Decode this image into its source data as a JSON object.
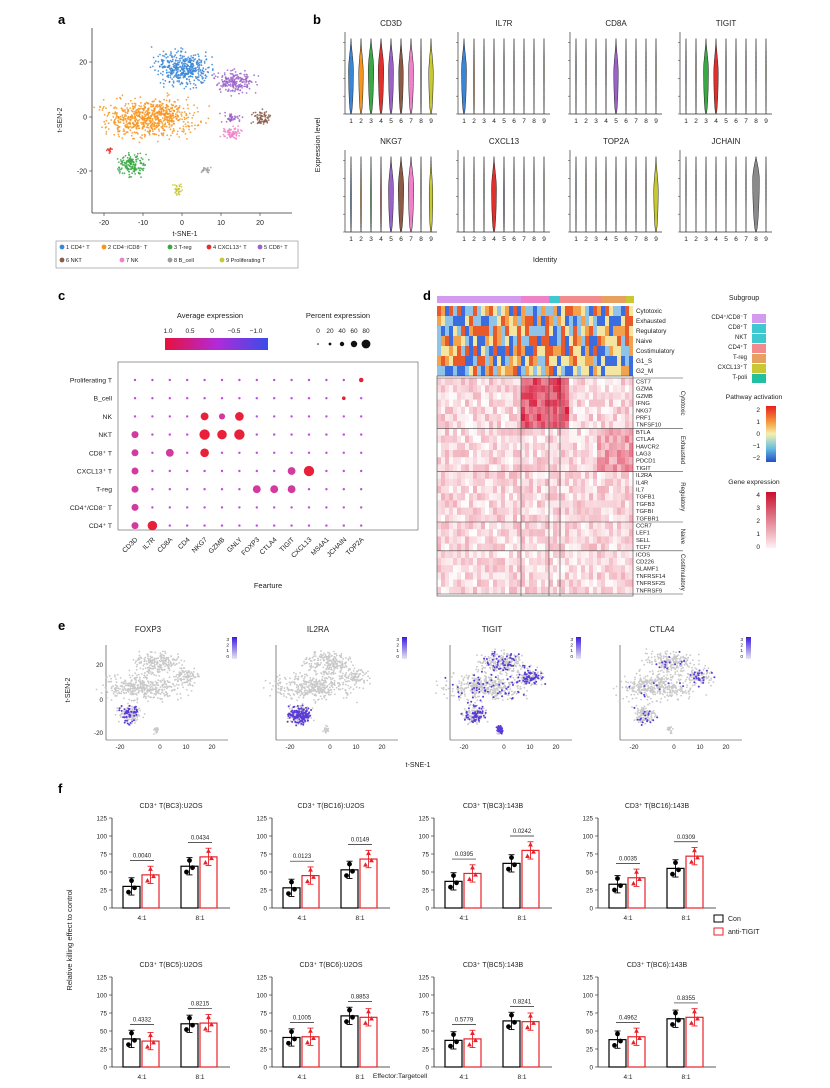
{
  "panels": {
    "a": "a",
    "b": "b",
    "c": "c",
    "d": "d",
    "e": "e",
    "f": "f"
  },
  "colors": {
    "clusters": [
      "#3a86d6",
      "#f7941d",
      "#3aa845",
      "#e0302e",
      "#9b63c9",
      "#8c5a45",
      "#ee82c8",
      "#9c9c9c",
      "#c8c832",
      "#3ec8d0"
    ],
    "con": "#000000",
    "anti": "#e8222a"
  },
  "panel_a": {
    "xlabel": "t-SNE-1",
    "ylabel": "t-SEN-2",
    "xticks": [
      "-20",
      "-10",
      "0",
      "10",
      "20"
    ],
    "yticks": [
      "20",
      "0",
      "-20"
    ],
    "legend": [
      "1 CD4⁺ T",
      "2 CD4⁻/CD8⁻ T",
      "3 T-reg",
      "4 CXCL13⁺ T",
      "5 CD8⁺ T",
      "6 NKT",
      "7 NK",
      "8 B_cell",
      "9 Proliferating T"
    ]
  },
  "panel_b": {
    "ylabel": "Expression level",
    "xlabel": "Identity",
    "genes": [
      "CD3D",
      "IL7R",
      "CD8A",
      "TIGIT",
      "NKG7",
      "CXCL13",
      "TOP2A",
      "JCHAIN"
    ],
    "identities": [
      "1",
      "2",
      "3",
      "4",
      "5",
      "6",
      "7",
      "8",
      "9"
    ]
  },
  "panel_c": {
    "legend_avg_title": "Average expression",
    "legend_avg_ticks": [
      "1.0",
      "0.5",
      "0",
      "−0.5",
      "−1.0"
    ],
    "legend_pct_title": "Percent expression",
    "legend_pct_ticks": [
      "0",
      "20",
      "40",
      "60",
      "80"
    ],
    "xlabel": "Fearture",
    "rows": [
      "Proliferating T",
      "B_cell",
      "NK",
      "NKT",
      "CD8⁺ T",
      "CXCL13⁺ T",
      "T-reg",
      "CD4⁺/CD8⁻ T",
      "CD4⁺ T"
    ],
    "cols": [
      "CD3D",
      "IL7R",
      "CD8A",
      "CD4",
      "NKG7",
      "GZMB",
      "GNLY",
      "FOXP3",
      "CTLA4",
      "TIGIT",
      "CXCL13",
      "MS4A1",
      "JCHAIN",
      "TOP2A"
    ]
  },
  "panel_d": {
    "pathways": [
      "Cytotoxic",
      "Exhausted",
      "Regulatory",
      "Naive",
      "Costimulatory",
      "G1_S",
      "G2_M"
    ],
    "genes": [
      "CST7",
      "GZMA",
      "GZMB",
      "IFNG",
      "NKG7",
      "PRF1",
      "TNFSF10",
      "BTLA",
      "CTLA4",
      "HAVCR2",
      "LAG3",
      "PDCD1",
      "TIGIT",
      "IL2RA",
      "IL4R",
      "IL7",
      "TGFB1",
      "TGFB3",
      "TGFBI",
      "TGFBR1",
      "CCR7",
      "LEF1",
      "SELL",
      "TCF7",
      "ICOS",
      "CD226",
      "SLAMF1",
      "TNFRSF14",
      "TNFRSF25",
      "TNFRSF9"
    ],
    "groups": [
      "Cytotoxic",
      "Exhausted",
      "Regulatory",
      "Naive",
      "Costimulatory"
    ],
    "legend_subgroup_title": "Subgroup",
    "legend_subgroups": [
      "CD4⁺/CD8⁻T",
      "CD8⁺T",
      "NKT",
      "CD4⁺T",
      "T-reg",
      "CXCL13⁺T",
      "T-poli"
    ],
    "legend_pathway_title": "Pathway activation",
    "legend_pathway_ticks": [
      "2",
      "1",
      "0",
      "−1",
      "−2"
    ],
    "legend_gene_title": "Gene expression",
    "legend_gene_ticks": [
      "4",
      "3",
      "2",
      "1",
      "0"
    ]
  },
  "panel_e": {
    "genes": [
      "FOXP3",
      "IL2RA",
      "TIGIT",
      "CTLA4"
    ],
    "xlabel": "t-SNE-1",
    "ylabel": "t-SEN-2",
    "xticks": [
      "-20",
      "0",
      "10",
      "20"
    ],
    "yticks": [
      "20",
      "0",
      "-20"
    ],
    "scale_ticks": [
      "3",
      "2",
      "1",
      "0"
    ]
  },
  "panel_f": {
    "ylabel": "Relative killing effect to control",
    "xlabel": "Effector:Targetcell",
    "legend": [
      "Con",
      "anti-TIGIT"
    ],
    "yticks": [
      "0",
      "25",
      "50",
      "75",
      "100",
      "125"
    ],
    "categories": [
      "4:1",
      "8:1"
    ]
  },
  "chart_data": [
    {
      "type": "bar",
      "title": "CD3⁺ T(BC3):U2OS",
      "categories": [
        "4:1",
        "8:1"
      ],
      "series": [
        {
          "name": "Con",
          "values": [
            30,
            58
          ]
        },
        {
          "name": "anti-TIGIT",
          "values": [
            46,
            71
          ]
        }
      ],
      "p_values": [
        "0.0040",
        "0.0434"
      ],
      "ylim": [
        0,
        125
      ]
    },
    {
      "type": "bar",
      "title": "CD3⁺ T(BC16):U2OS",
      "categories": [
        "4:1",
        "8:1"
      ],
      "series": [
        {
          "name": "Con",
          "values": [
            28,
            53
          ]
        },
        {
          "name": "anti-TIGIT",
          "values": [
            45,
            68
          ]
        }
      ],
      "p_values": [
        "0.0123",
        "0.0149"
      ],
      "ylim": [
        0,
        125
      ]
    },
    {
      "type": "bar",
      "title": "CD3⁺ T(BC3):143B",
      "categories": [
        "4:1",
        "8:1"
      ],
      "series": [
        {
          "name": "Con",
          "values": [
            37,
            62
          ]
        },
        {
          "name": "anti-TIGIT",
          "values": [
            48,
            80
          ]
        }
      ],
      "p_values": [
        "0.0395",
        "0.0242"
      ],
      "ylim": [
        0,
        125
      ]
    },
    {
      "type": "bar",
      "title": "CD3⁺ T(BC16):143B",
      "categories": [
        "4:1",
        "8:1"
      ],
      "series": [
        {
          "name": "Con",
          "values": [
            33,
            55
          ]
        },
        {
          "name": "anti-TIGIT",
          "values": [
            42,
            72
          ]
        }
      ],
      "p_values": [
        "0.0035",
        "0.0309"
      ],
      "ylim": [
        0,
        125
      ]
    },
    {
      "type": "bar",
      "title": "CD3⁺ T(BC5):U2OS",
      "categories": [
        "4:1",
        "8:1"
      ],
      "series": [
        {
          "name": "Con",
          "values": [
            39,
            60
          ]
        },
        {
          "name": "anti-TIGIT",
          "values": [
            36,
            61
          ]
        }
      ],
      "p_values": [
        "0.4332",
        "0.8215"
      ],
      "ylim": [
        0,
        125
      ]
    },
    {
      "type": "bar",
      "title": "CD3⁺ T(BC6):U2OS",
      "categories": [
        "4:1",
        "8:1"
      ],
      "series": [
        {
          "name": "Con",
          "values": [
            41,
            71
          ]
        },
        {
          "name": "anti-TIGIT",
          "values": [
            42,
            69
          ]
        }
      ],
      "p_values": [
        "0.1005",
        "0.8853"
      ],
      "ylim": [
        0,
        125
      ]
    },
    {
      "type": "bar",
      "title": "CD3⁺ T(BC5):143B",
      "categories": [
        "4:1",
        "8:1"
      ],
      "series": [
        {
          "name": "Con",
          "values": [
            37,
            64
          ]
        },
        {
          "name": "anti-TIGIT",
          "values": [
            39,
            63
          ]
        }
      ],
      "p_values": [
        "0.5779",
        "0.8241"
      ],
      "ylim": [
        0,
        125
      ]
    },
    {
      "type": "bar",
      "title": "CD3⁺ T(BC6):143B",
      "categories": [
        "4:1",
        "8:1"
      ],
      "series": [
        {
          "name": "Con",
          "values": [
            38,
            67
          ]
        },
        {
          "name": "anti-TIGIT",
          "values": [
            42,
            69
          ]
        }
      ],
      "p_values": [
        "0.4962",
        "0.8355"
      ],
      "ylim": [
        0,
        125
      ]
    }
  ]
}
